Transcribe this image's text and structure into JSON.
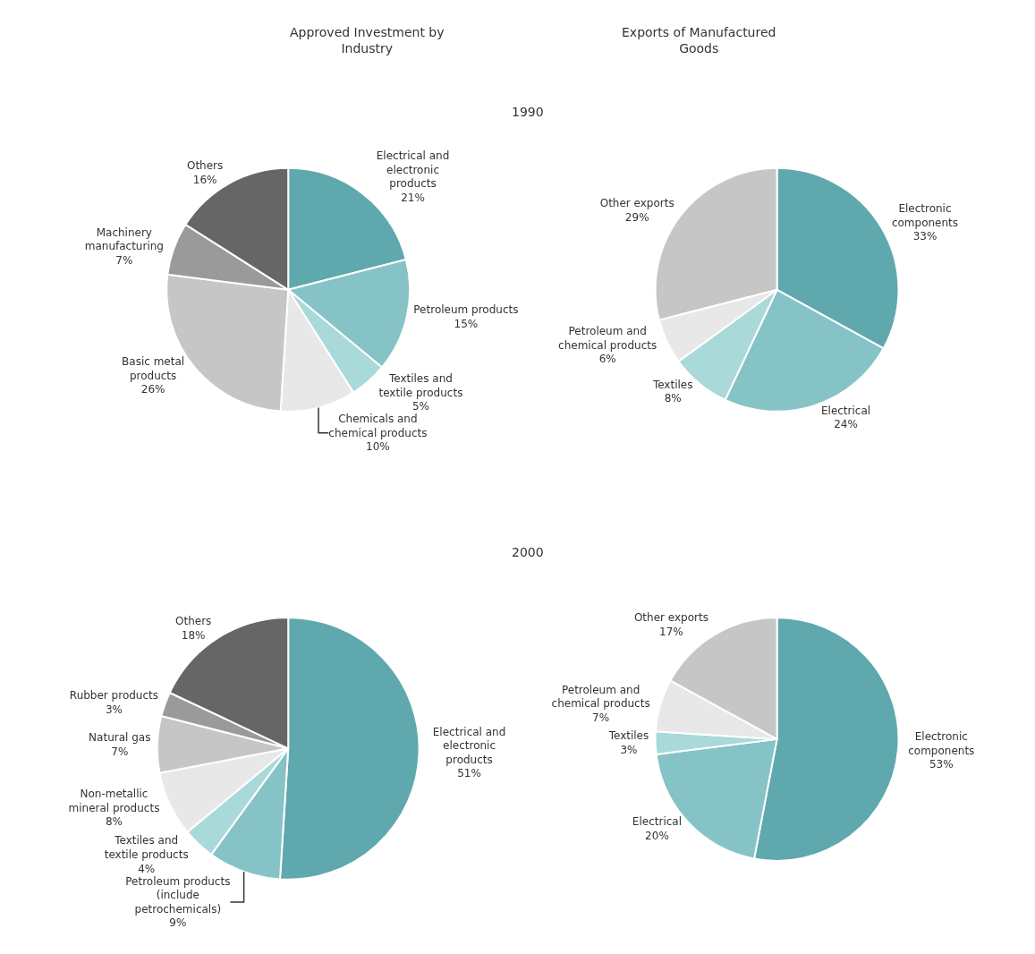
{
  "chart_data": [
    {
      "type": "pie",
      "title": "Approved Investment by Industry",
      "subtitle": "1990",
      "categories": [
        "Electrical and electronic products",
        "Petroleum products",
        "Textiles and textile products",
        "Chemicals and chemical products",
        "Basic metal products",
        "Machinery manufacturing",
        "Others"
      ],
      "values": [
        21,
        15,
        5,
        10,
        26,
        7,
        16
      ],
      "value_labels": [
        "21%",
        "15%",
        "5%",
        "10%",
        "26%",
        "7%",
        "16%"
      ],
      "colors": [
        "#5fa9ae",
        "#86c3c6",
        "#a9d9d9",
        "#e8e8e8",
        "#c6c6c6",
        "#9a9a9a",
        "#666666"
      ]
    },
    {
      "type": "pie",
      "title": "Exports of Manufactured Goods",
      "categories": [
        "Electronic components",
        "Electrical",
        "Textiles",
        "Petroleum and chemical products",
        "Other exports"
      ],
      "values": [
        33,
        24,
        8,
        6,
        29
      ],
      "value_labels": [
        "33%",
        "24%",
        "8%",
        "6%",
        "29%"
      ],
      "colors": [
        "#5fa9ae",
        "#86c3c6",
        "#a9d9d9",
        "#e8e8e8",
        "#c6c6c6"
      ]
    },
    {
      "type": "pie",
      "subtitle": "2000",
      "categories": [
        "Electrical and electronic products",
        "Petroleum products (include petrochemicals)",
        "Textiles and textile products",
        "Non-metallic mineral products",
        "Natural gas",
        "Rubber products",
        "Others"
      ],
      "values": [
        51,
        9,
        4,
        8,
        7,
        3,
        18
      ],
      "value_labels": [
        "51%",
        "9%",
        "4%",
        "8%",
        "7%",
        "3%",
        "18%"
      ],
      "colors": [
        "#5fa9ae",
        "#86c3c6",
        "#a9d9d9",
        "#e8e8e8",
        "#c6c6c6",
        "#9a9a9a",
        "#666666"
      ]
    },
    {
      "type": "pie",
      "categories": [
        "Electronic components",
        "Electrical",
        "Textiles",
        "Petroleum and chemical products",
        "Other exports"
      ],
      "values": [
        53,
        20,
        3,
        7,
        17
      ],
      "value_labels": [
        "53%",
        "20%",
        "3%",
        "7%",
        "17%"
      ],
      "colors": [
        "#5fa9ae",
        "#86c3c6",
        "#a9d9d9",
        "#e8e8e8",
        "#c6c6c6"
      ]
    }
  ]
}
